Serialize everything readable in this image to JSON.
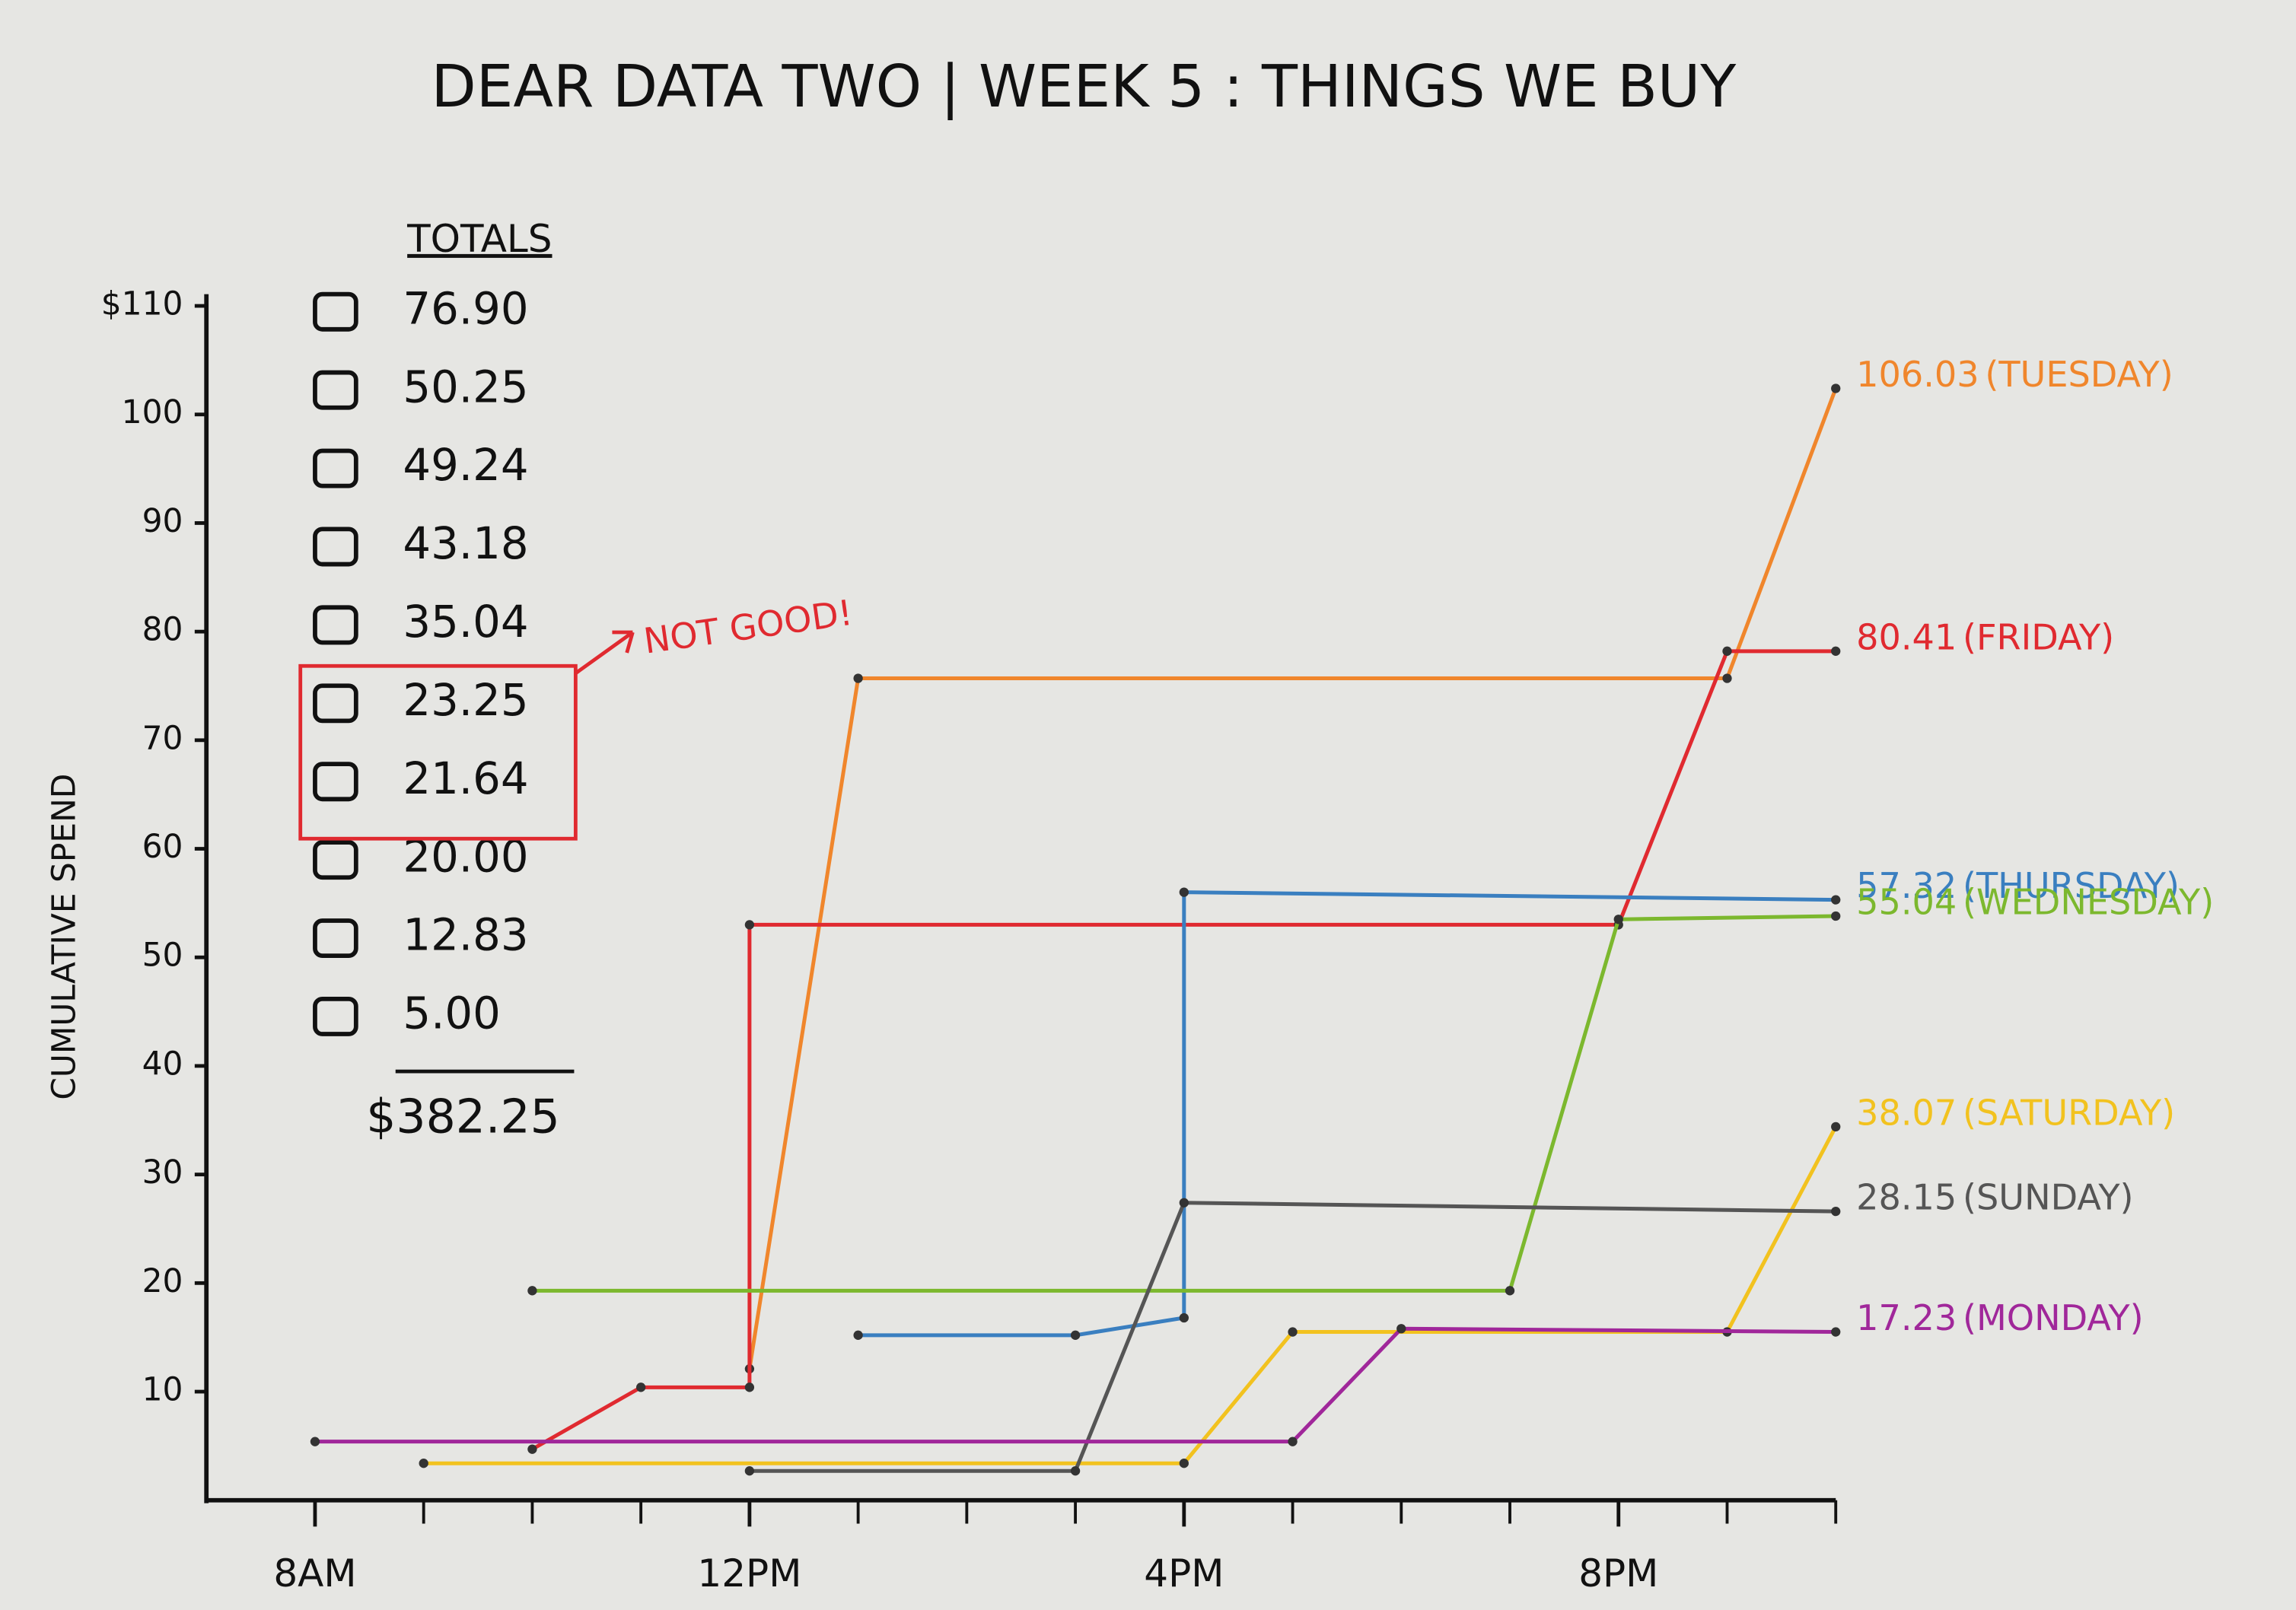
{
  "chart_data": {
    "type": "line",
    "title": "DEAR DATA TWO | WEEK 5 : THINGS WE BUY",
    "ylabel": "CUMULATIVE SPEND",
    "xlim": [
      7,
      22
    ],
    "xticks": [
      {
        "value": 8,
        "label": "8AM"
      },
      {
        "value": 12,
        "label": "12PM"
      },
      {
        "value": 16,
        "label": "4PM"
      },
      {
        "value": 20,
        "label": "8PM"
      }
    ],
    "ylim": [
      0,
      110
    ],
    "yticks": [
      10,
      20,
      30,
      40,
      50,
      60,
      70,
      80,
      90,
      100,
      {
        "value": 110,
        "label": "$110"
      }
    ],
    "grid": false,
    "series": [
      {
        "name": "(TUESDAY)",
        "total": 106.03,
        "color": "#f0862c",
        "x": [
          12,
          13,
          21,
          22
        ],
        "values": [
          12.1,
          75.7,
          75.7,
          102.4
        ]
      },
      {
        "name": "(FRIDAY)",
        "total": 80.41,
        "color": "#e02a30",
        "x": [
          10,
          11,
          12,
          12,
          20,
          21,
          22
        ],
        "values": [
          4.7,
          10.4,
          10.4,
          53,
          53,
          78.2,
          78.2
        ]
      },
      {
        "name": "(THURSDAY)",
        "total": 57.32,
        "color": "#3a7fc0",
        "x": [
          13,
          15,
          16,
          16,
          22
        ],
        "values": [
          15.2,
          15.2,
          16.8,
          56,
          55.3
        ]
      },
      {
        "name": "(WEDNESDAY)",
        "total": 55.04,
        "color": "#7cb82e",
        "x": [
          10,
          19,
          20,
          22
        ],
        "values": [
          19.3,
          19.3,
          53.5,
          53.8
        ]
      },
      {
        "name": "(SATURDAY)",
        "total": 38.07,
        "color": "#f2c21f",
        "x": [
          9,
          16,
          17,
          21,
          22
        ],
        "values": [
          3.4,
          3.4,
          15.5,
          15.5,
          34.4
        ]
      },
      {
        "name": "(SUNDAY)",
        "total": 28.15,
        "color": "#555555",
        "x": [
          12,
          15,
          16,
          22
        ],
        "values": [
          2.7,
          2.7,
          27.4,
          26.6
        ]
      },
      {
        "name": "(MONDAY)",
        "total": 17.23,
        "color": "#a0279a",
        "x": [
          8,
          17,
          18,
          22
        ],
        "values": [
          5.4,
          5.4,
          15.8,
          15.5
        ]
      }
    ],
    "totals": {
      "title": "TOTALS",
      "values": [
        "76.90",
        "50.25",
        "49.24",
        "43.18",
        "35.04",
        "23.25",
        "21.64",
        "20.00",
        "12.83",
        "5.00"
      ],
      "sum": "$382.25"
    },
    "annotation": "NOT GOOD!"
  }
}
